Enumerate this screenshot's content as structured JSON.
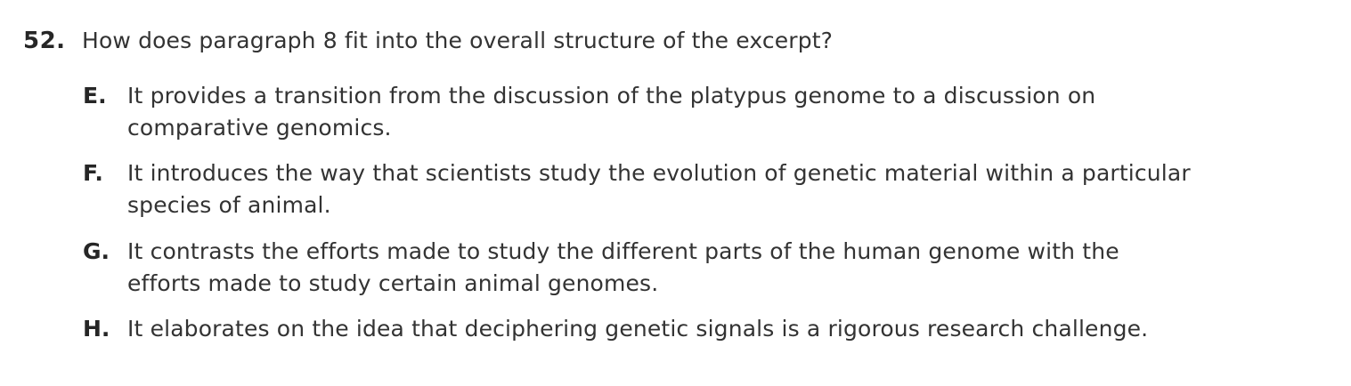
{
  "question": {
    "number": "52.",
    "stem": "How does paragraph 8 fit into the overall structure of the excerpt?",
    "choices": [
      {
        "letter": "E.",
        "lines": [
          "It provides a transition from the discussion of the platypus genome to a discussion on",
          "comparative genomics."
        ]
      },
      {
        "letter": "F.",
        "lines": [
          "It introduces the way that scientists study the evolution of genetic material within a particular",
          "species of animal."
        ]
      },
      {
        "letter": "G.",
        "lines": [
          "It contrasts the efforts made to study the different parts of the human genome with the",
          "efforts made to study certain animal genomes."
        ]
      },
      {
        "letter": "H.",
        "lines": [
          "It elaborates on the idea that deciphering genetic signals is a rigorous research challenge."
        ]
      }
    ]
  }
}
